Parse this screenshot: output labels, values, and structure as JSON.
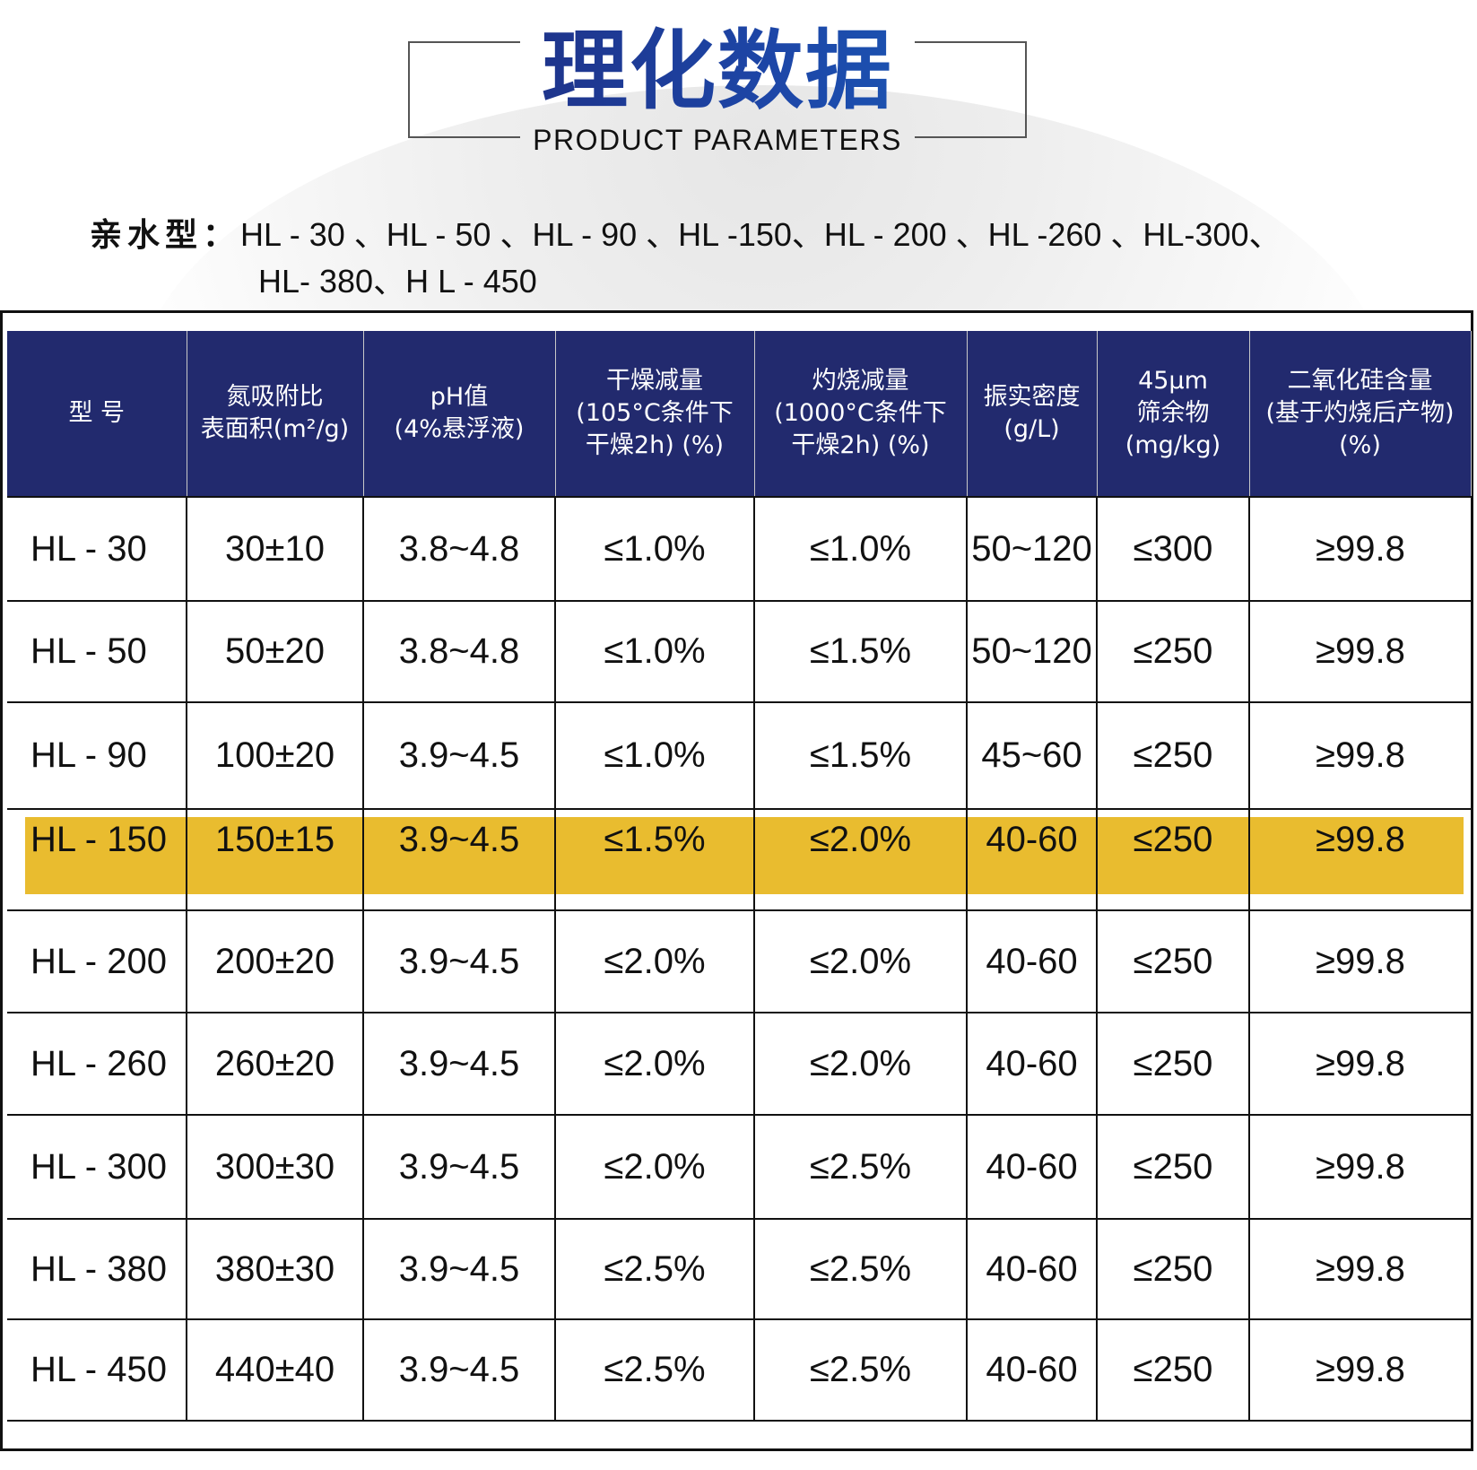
{
  "header": {
    "title": "理化数据",
    "subtitle": "PRODUCT PARAMETERS"
  },
  "types": {
    "label": "亲水型：",
    "line1": "HL - 30 、HL - 50 、HL - 90 、HL -150、HL - 200 、HL -260 、HL-300、",
    "line2": "HL- 380、H L - 450"
  },
  "colors": {
    "header_bg": "#222a6e",
    "highlight": "#e9bc2f",
    "title_blue": "#1e3a9a"
  },
  "table": {
    "columns": [
      "型 号",
      "氮吸附比\n表面积(m²/g)",
      "pH值\n(4%悬浮液)",
      "干燥减量\n(105°C条件下\n干燥2h) (%)",
      "灼烧减量\n(1000°C条件下\n干燥2h) (%)",
      "振实密度\n(g/L)",
      "45μm\n筛余物\n(mg/kg)",
      "二氧化硅含量\n(基于灼烧后产物)\n(%)"
    ],
    "rows": [
      {
        "model": "HL - 30",
        "surface_area": "30±10",
        "ph": "3.8~4.8",
        "drying_loss": "≤1.0%",
        "ignition_loss": "≤1.0%",
        "tap_density": "50~120",
        "sieve_residue": "≤300",
        "sio2": "≥99.8",
        "highlighted": false
      },
      {
        "model": "HL - 50",
        "surface_area": "50±20",
        "ph": "3.8~4.8",
        "drying_loss": "≤1.0%",
        "ignition_loss": "≤1.5%",
        "tap_density": "50~120",
        "sieve_residue": "≤250",
        "sio2": "≥99.8",
        "highlighted": false
      },
      {
        "model": "HL - 90",
        "surface_area": "100±20",
        "ph": "3.9~4.5",
        "drying_loss": "≤1.0%",
        "ignition_loss": "≤1.5%",
        "tap_density": "45~60",
        "sieve_residue": "≤250",
        "sio2": "≥99.8",
        "highlighted": false
      },
      {
        "model": "HL - 150",
        "surface_area": "150±15",
        "ph": "3.9~4.5",
        "drying_loss": "≤1.5%",
        "ignition_loss": "≤2.0%",
        "tap_density": "40-60",
        "sieve_residue": "≤250",
        "sio2": "≥99.8",
        "highlighted": true
      },
      {
        "model": "HL - 200",
        "surface_area": "200±20",
        "ph": "3.9~4.5",
        "drying_loss": "≤2.0%",
        "ignition_loss": "≤2.0%",
        "tap_density": "40-60",
        "sieve_residue": "≤250",
        "sio2": "≥99.8",
        "highlighted": false
      },
      {
        "model": "HL - 260",
        "surface_area": "260±20",
        "ph": "3.9~4.5",
        "drying_loss": "≤2.0%",
        "ignition_loss": "≤2.0%",
        "tap_density": "40-60",
        "sieve_residue": "≤250",
        "sio2": "≥99.8",
        "highlighted": false
      },
      {
        "model": "HL - 300",
        "surface_area": "300±30",
        "ph": "3.9~4.5",
        "drying_loss": "≤2.0%",
        "ignition_loss": "≤2.5%",
        "tap_density": "40-60",
        "sieve_residue": "≤250",
        "sio2": "≥99.8",
        "highlighted": false
      },
      {
        "model": "HL - 380",
        "surface_area": "380±30",
        "ph": "3.9~4.5",
        "drying_loss": "≤2.5%",
        "ignition_loss": "≤2.5%",
        "tap_density": "40-60",
        "sieve_residue": "≤250",
        "sio2": "≥99.8",
        "highlighted": false
      },
      {
        "model": "HL - 450",
        "surface_area": "440±40",
        "ph": "3.9~4.5",
        "drying_loss": "≤2.5%",
        "ignition_loss": "≤2.5%",
        "tap_density": "40-60",
        "sieve_residue": "≤250",
        "sio2": "≥99.8",
        "highlighted": false
      }
    ]
  }
}
